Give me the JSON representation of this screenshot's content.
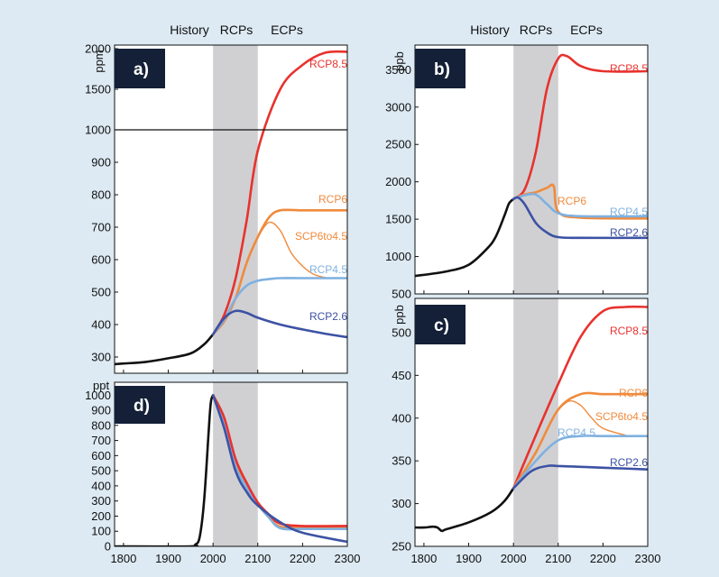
{
  "era_labels": [
    "History",
    "RCPs",
    "ECPs"
  ],
  "shade": {
    "from": 2000,
    "to": 2100,
    "color": "#d0d0d2"
  },
  "colors": {
    "History": "#111111",
    "RCP8.5": "#e8322e",
    "RCP6": "#f08a3c",
    "SCP6to4.5": "#f08a3c",
    "RCP4.5": "#7fb1e0",
    "RCP2.6": "#3c52a4",
    "badge": "#142038",
    "background": "#ddeaf3"
  },
  "chart_data": [
    {
      "panel": "a)",
      "type": "line",
      "ylabel": "ppm",
      "y_scale": "broken",
      "xlim": [
        1780,
        2300
      ],
      "y_ticks": [
        300,
        400,
        500,
        600,
        700,
        800,
        900,
        1000,
        1500,
        2000
      ],
      "series": [
        {
          "name": "History",
          "label": "",
          "x": [
            1780,
            1800,
            1850,
            1900,
            1950,
            1980,
            2000
          ],
          "y": [
            278,
            280,
            285,
            296,
            311,
            339,
            370
          ]
        },
        {
          "name": "RCP8.5",
          "label": "RCP8.5",
          "x": [
            2000,
            2025,
            2050,
            2075,
            2100,
            2150,
            2200,
            2250,
            2300
          ],
          "y": [
            370,
            430,
            540,
            720,
            936,
            1500,
            1800,
            1950,
            1962
          ]
        },
        {
          "name": "RCP6",
          "label": "RCP6",
          "x": [
            2000,
            2025,
            2050,
            2075,
            2100,
            2125,
            2150,
            2200,
            2300
          ],
          "y": [
            370,
            410,
            480,
            590,
            670,
            730,
            752,
            752,
            752
          ]
        },
        {
          "name": "SCP6to4.5",
          "label": "SCP6to4.5",
          "x": [
            2100,
            2125,
            2150,
            2175,
            2200,
            2225,
            2250
          ],
          "y": [
            670,
            715,
            690,
            620,
            580,
            555,
            545
          ]
        },
        {
          "name": "RCP4.5",
          "label": "RCP4.5",
          "x": [
            2000,
            2025,
            2050,
            2075,
            2100,
            2125,
            2150,
            2200,
            2300
          ],
          "y": [
            370,
            415,
            480,
            520,
            535,
            540,
            543,
            543,
            543
          ]
        },
        {
          "name": "RCP2.6",
          "label": "RCP2.6",
          "x": [
            2000,
            2025,
            2050,
            2075,
            2100,
            2150,
            2200,
            2250,
            2300
          ],
          "y": [
            370,
            420,
            442,
            436,
            421,
            400,
            385,
            372,
            361
          ]
        }
      ]
    },
    {
      "panel": "b)",
      "type": "line",
      "ylabel": "ppb",
      "xlim": [
        1780,
        2300
      ],
      "ylim": [
        500,
        3800
      ],
      "y_ticks": [
        500,
        1000,
        1500,
        2000,
        2500,
        3000,
        3500
      ],
      "series": [
        {
          "name": "History",
          "label": "",
          "x": [
            1780,
            1850,
            1900,
            1940,
            1960,
            1980,
            1990,
            2000
          ],
          "y": [
            740,
            800,
            890,
            1100,
            1260,
            1550,
            1710,
            1770
          ]
        },
        {
          "name": "RCP8.5",
          "label": "RCP8.5",
          "x": [
            2000,
            2025,
            2050,
            2075,
            2100,
            2120,
            2150,
            2200,
            2300
          ],
          "y": [
            1770,
            1900,
            2400,
            3250,
            3650,
            3680,
            3550,
            3480,
            3480
          ]
        },
        {
          "name": "RCP6",
          "label": "RCP6",
          "x": [
            2000,
            2025,
            2050,
            2075,
            2090,
            2100,
            2150,
            2300
          ],
          "y": [
            1770,
            1830,
            1860,
            1920,
            1940,
            1600,
            1520,
            1510
          ]
        },
        {
          "name": "RCP4.5",
          "label": "RCP4.5",
          "x": [
            2000,
            2025,
            2050,
            2075,
            2100,
            2150,
            2300
          ],
          "y": [
            1770,
            1820,
            1830,
            1700,
            1580,
            1540,
            1540
          ]
        },
        {
          "name": "RCP2.6",
          "label": "RCP2.6",
          "x": [
            2000,
            2010,
            2025,
            2050,
            2075,
            2100,
            2150,
            2300
          ],
          "y": [
            1770,
            1790,
            1700,
            1450,
            1320,
            1260,
            1250,
            1250
          ]
        }
      ]
    },
    {
      "panel": "c)",
      "type": "line",
      "ylabel": "ppb",
      "xlim": [
        1780,
        2300
      ],
      "ylim": [
        250,
        540
      ],
      "y_ticks": [
        250,
        300,
        350,
        400,
        450,
        500
      ],
      "series": [
        {
          "name": "History",
          "label": "",
          "x": [
            1780,
            1800,
            1820,
            1830,
            1840,
            1850,
            1900,
            1950,
            1980,
            2000
          ],
          "y": [
            272,
            272,
            273,
            272,
            268,
            270,
            278,
            290,
            303,
            318
          ]
        },
        {
          "name": "RCP8.5",
          "label": "RCP8.5",
          "x": [
            2000,
            2050,
            2100,
            2150,
            2200,
            2250,
            2300
          ],
          "y": [
            318,
            380,
            440,
            495,
            525,
            530,
            530
          ]
        },
        {
          "name": "RCP6",
          "label": "RCP6",
          "x": [
            2000,
            2050,
            2100,
            2150,
            2200,
            2250,
            2300
          ],
          "y": [
            318,
            360,
            410,
            428,
            428,
            428,
            428
          ]
        },
        {
          "name": "SCP6to4.5",
          "label": "SCP6to4.5",
          "x": [
            2100,
            2125,
            2150,
            2175,
            2200,
            2250
          ],
          "y": [
            410,
            420,
            415,
            400,
            388,
            380
          ]
        },
        {
          "name": "RCP4.5",
          "label": "RCP4.5",
          "x": [
            2000,
            2050,
            2100,
            2150,
            2200,
            2300
          ],
          "y": [
            318,
            350,
            374,
            379,
            379,
            379
          ]
        },
        {
          "name": "RCP2.6",
          "label": "RCP2.6",
          "x": [
            2000,
            2040,
            2075,
            2100,
            2150,
            2200,
            2300
          ],
          "y": [
            318,
            338,
            344,
            344,
            343,
            342,
            340
          ]
        }
      ]
    },
    {
      "panel": "d)",
      "type": "line",
      "ylabel": "ppt",
      "xlim": [
        1780,
        2300
      ],
      "ylim": [
        0,
        1080
      ],
      "y_ticks": [
        0,
        100,
        200,
        300,
        400,
        500,
        600,
        700,
        800,
        900,
        1000
      ],
      "series": [
        {
          "name": "History",
          "label": "",
          "x": [
            1780,
            1950,
            1960,
            1970,
            1980,
            1990,
            1995,
            2000
          ],
          "y": [
            0,
            0,
            10,
            60,
            300,
            750,
            950,
            1000
          ]
        },
        {
          "name": "RCP6",
          "label": "",
          "x": [
            2000,
            2025,
            2050,
            2075,
            2100,
            2125,
            2150,
            2200,
            2300
          ],
          "y": [
            1000,
            820,
            550,
            400,
            280,
            190,
            130,
            125,
            125
          ]
        },
        {
          "name": "RCP4.5",
          "label": "",
          "x": [
            2000,
            2025,
            2050,
            2075,
            2100,
            2125,
            2150,
            2200,
            2300
          ],
          "y": [
            1000,
            800,
            530,
            390,
            280,
            190,
            120,
            115,
            115
          ]
        },
        {
          "name": "RCP8.5",
          "label": "",
          "x": [
            2000,
            2025,
            2050,
            2075,
            2100,
            2125,
            2150,
            2200,
            2300
          ],
          "y": [
            1000,
            850,
            580,
            420,
            290,
            210,
            150,
            135,
            135
          ]
        },
        {
          "name": "RCP2.6",
          "label": "",
          "x": [
            2000,
            2025,
            2050,
            2075,
            2100,
            2150,
            2200,
            2300
          ],
          "y": [
            1000,
            780,
            500,
            360,
            270,
            160,
            90,
            30
          ]
        }
      ]
    }
  ]
}
